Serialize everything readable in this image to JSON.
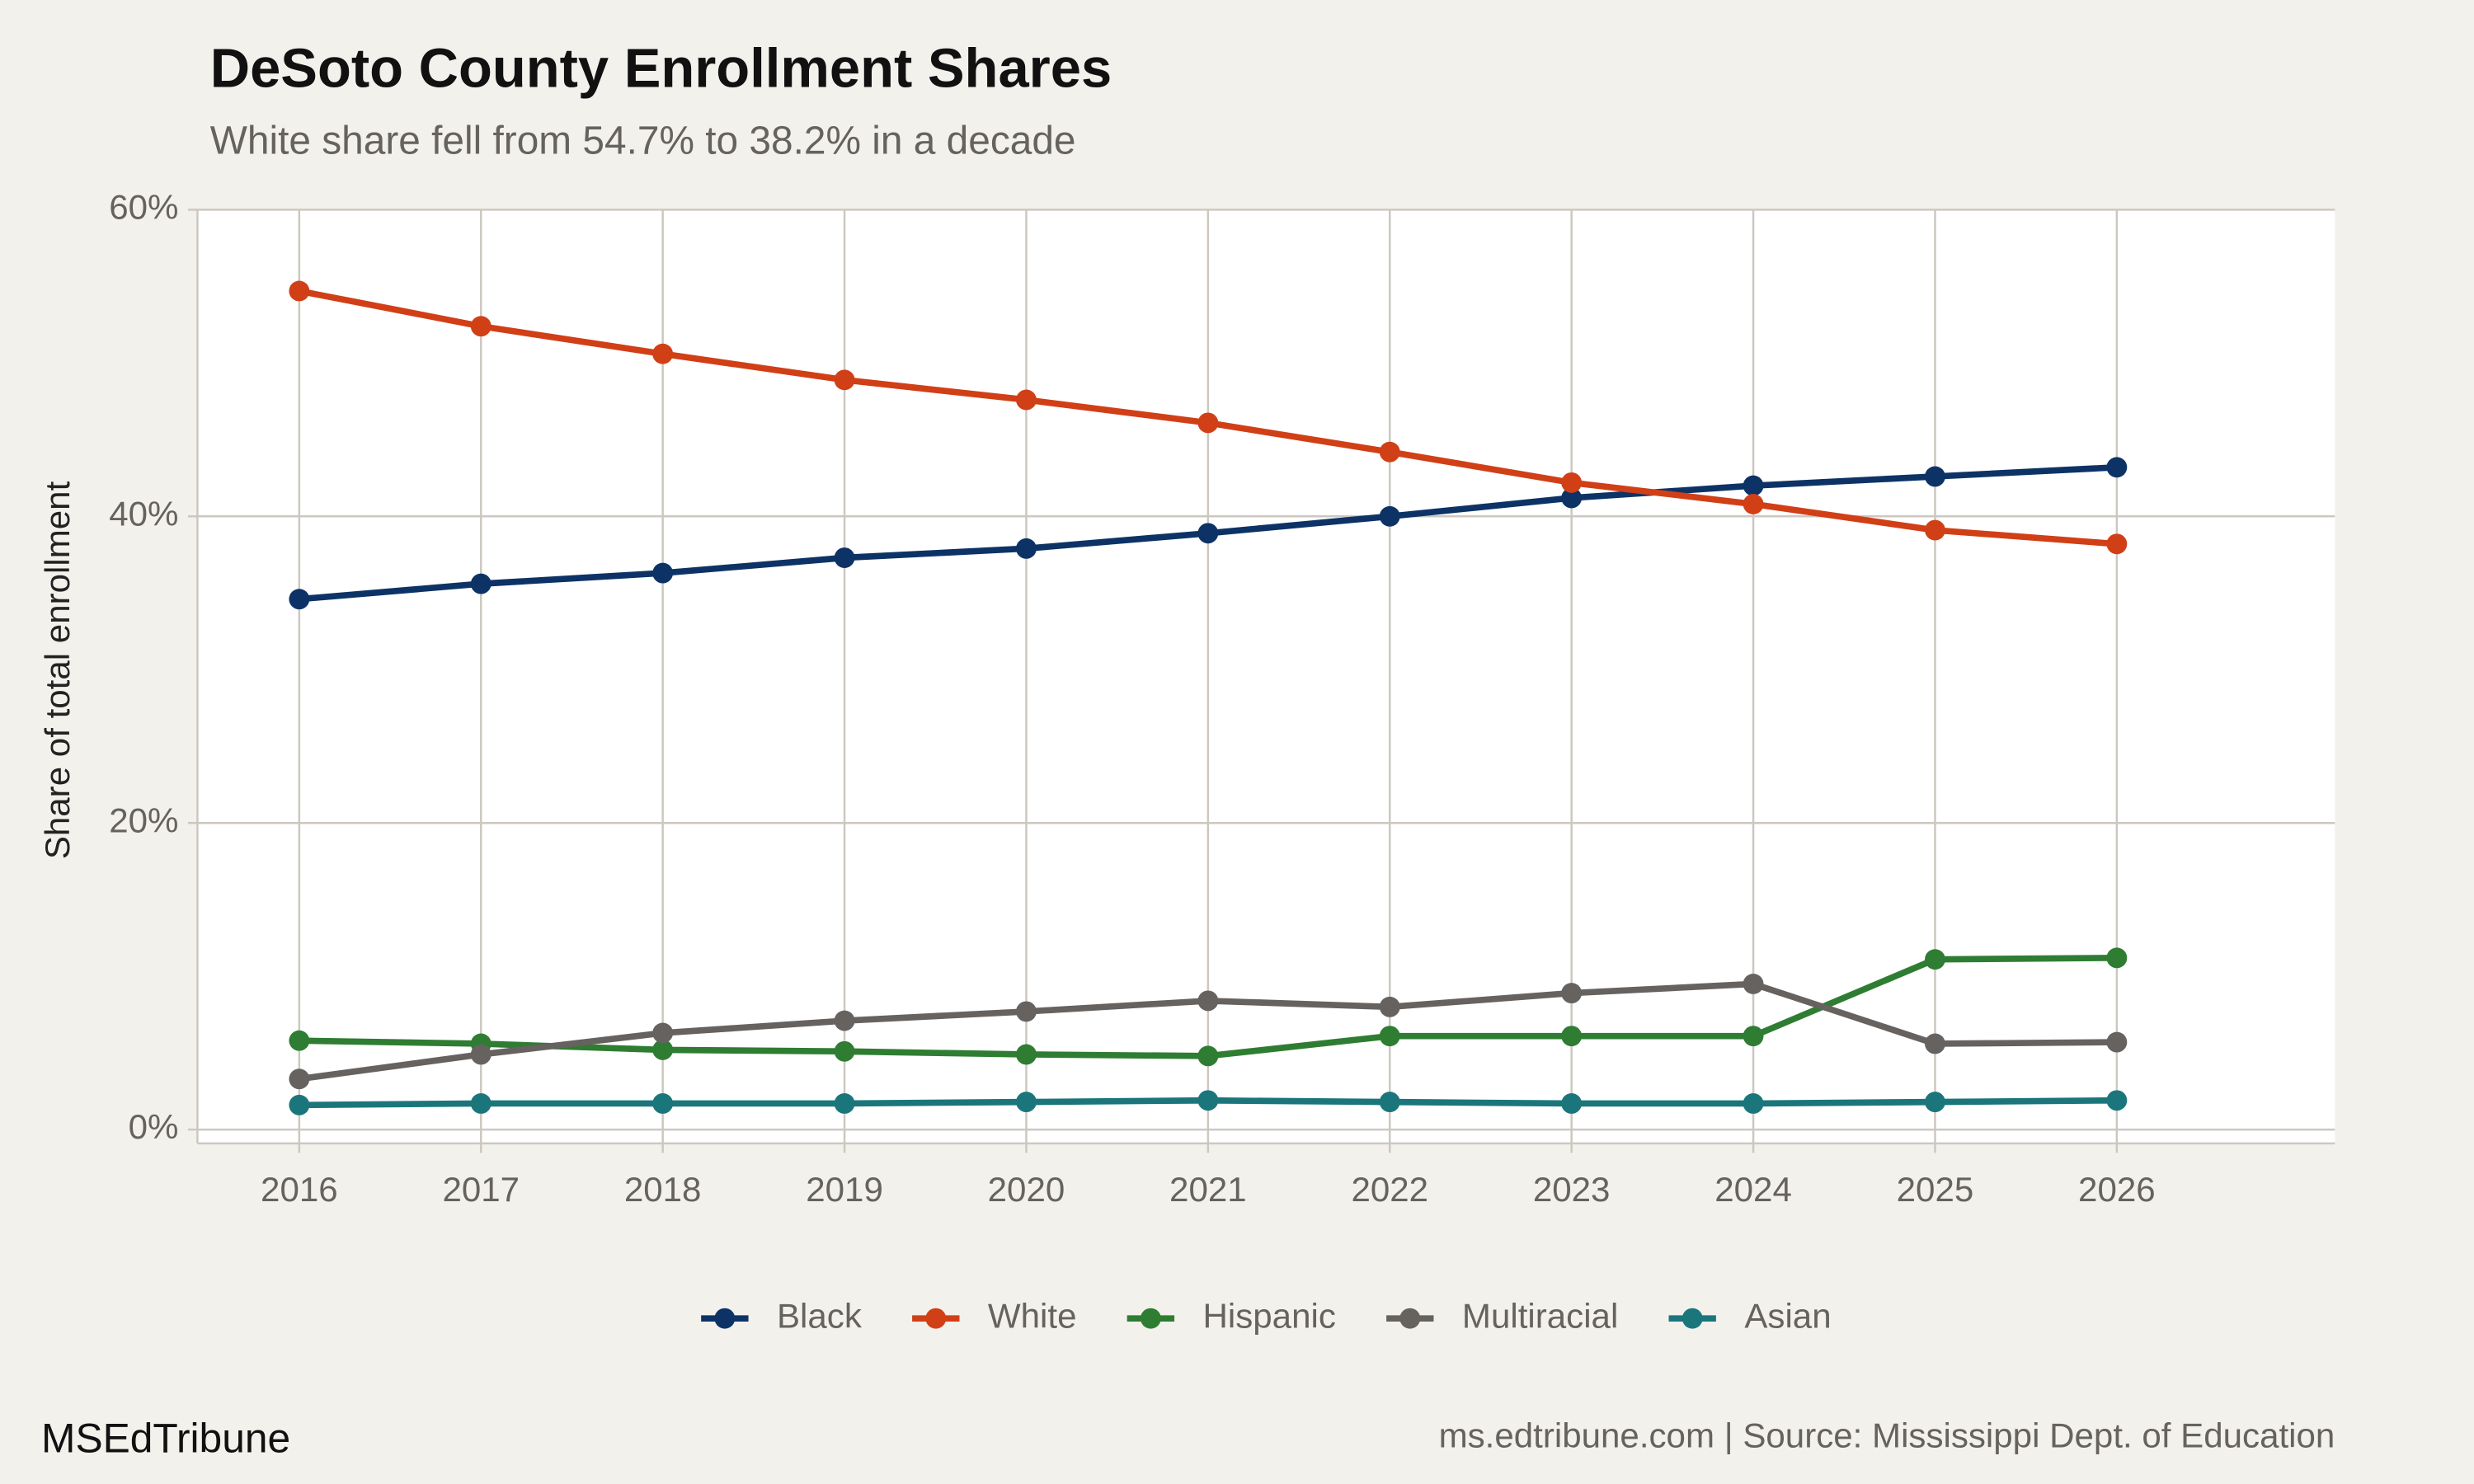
{
  "chart_data": {
    "type": "line",
    "title": "DeSoto County Enrollment Shares",
    "subtitle": "White share fell from 54.7% to 38.2% in a decade",
    "y_label": "Share of total enrollment",
    "brand": "MSEdTribune",
    "caption": "ms.edtribune.com | Source: Mississippi Dept. of Education",
    "x": [
      2016,
      2017,
      2018,
      2019,
      2020,
      2021,
      2022,
      2023,
      2024,
      2025,
      2026
    ],
    "series": [
      {
        "name": "Black",
        "color": "#0d3366",
        "values": [
          34.6,
          35.6,
          36.3,
          37.3,
          37.9,
          38.9,
          40.0,
          41.2,
          42.0,
          42.6,
          43.2
        ]
      },
      {
        "name": "White",
        "color": "#d13f17",
        "values": [
          54.7,
          52.4,
          50.6,
          48.9,
          47.6,
          46.1,
          44.2,
          42.2,
          40.8,
          39.1,
          38.2
        ]
      },
      {
        "name": "Hispanic",
        "color": "#2e7d32",
        "values": [
          5.8,
          5.6,
          5.2,
          5.1,
          4.9,
          4.8,
          6.1,
          6.1,
          6.1,
          11.1,
          11.2
        ]
      },
      {
        "name": "Multiracial",
        "color": "#666260",
        "values": [
          3.3,
          4.9,
          6.3,
          7.1,
          7.7,
          8.4,
          8.0,
          8.9,
          9.5,
          5.6,
          5.7
        ]
      },
      {
        "name": "Asian",
        "color": "#1b767c",
        "values": [
          1.6,
          1.7,
          1.7,
          1.7,
          1.8,
          1.9,
          1.8,
          1.7,
          1.7,
          1.8,
          1.9
        ]
      }
    ],
    "xlim": [
      2015.44,
      2027.2
    ],
    "ylim": [
      -0.9,
      60
    ],
    "xticks": [
      2016,
      2017,
      2018,
      2019,
      2020,
      2021,
      2022,
      2023,
      2024,
      2025,
      2026
    ],
    "yticks": [
      {
        "value": 0,
        "label": "0%"
      },
      {
        "value": 20,
        "label": "20%"
      },
      {
        "value": 40,
        "label": "40%"
      },
      {
        "value": 60,
        "label": "60%"
      }
    ],
    "grid": true,
    "legend": "bottom"
  }
}
